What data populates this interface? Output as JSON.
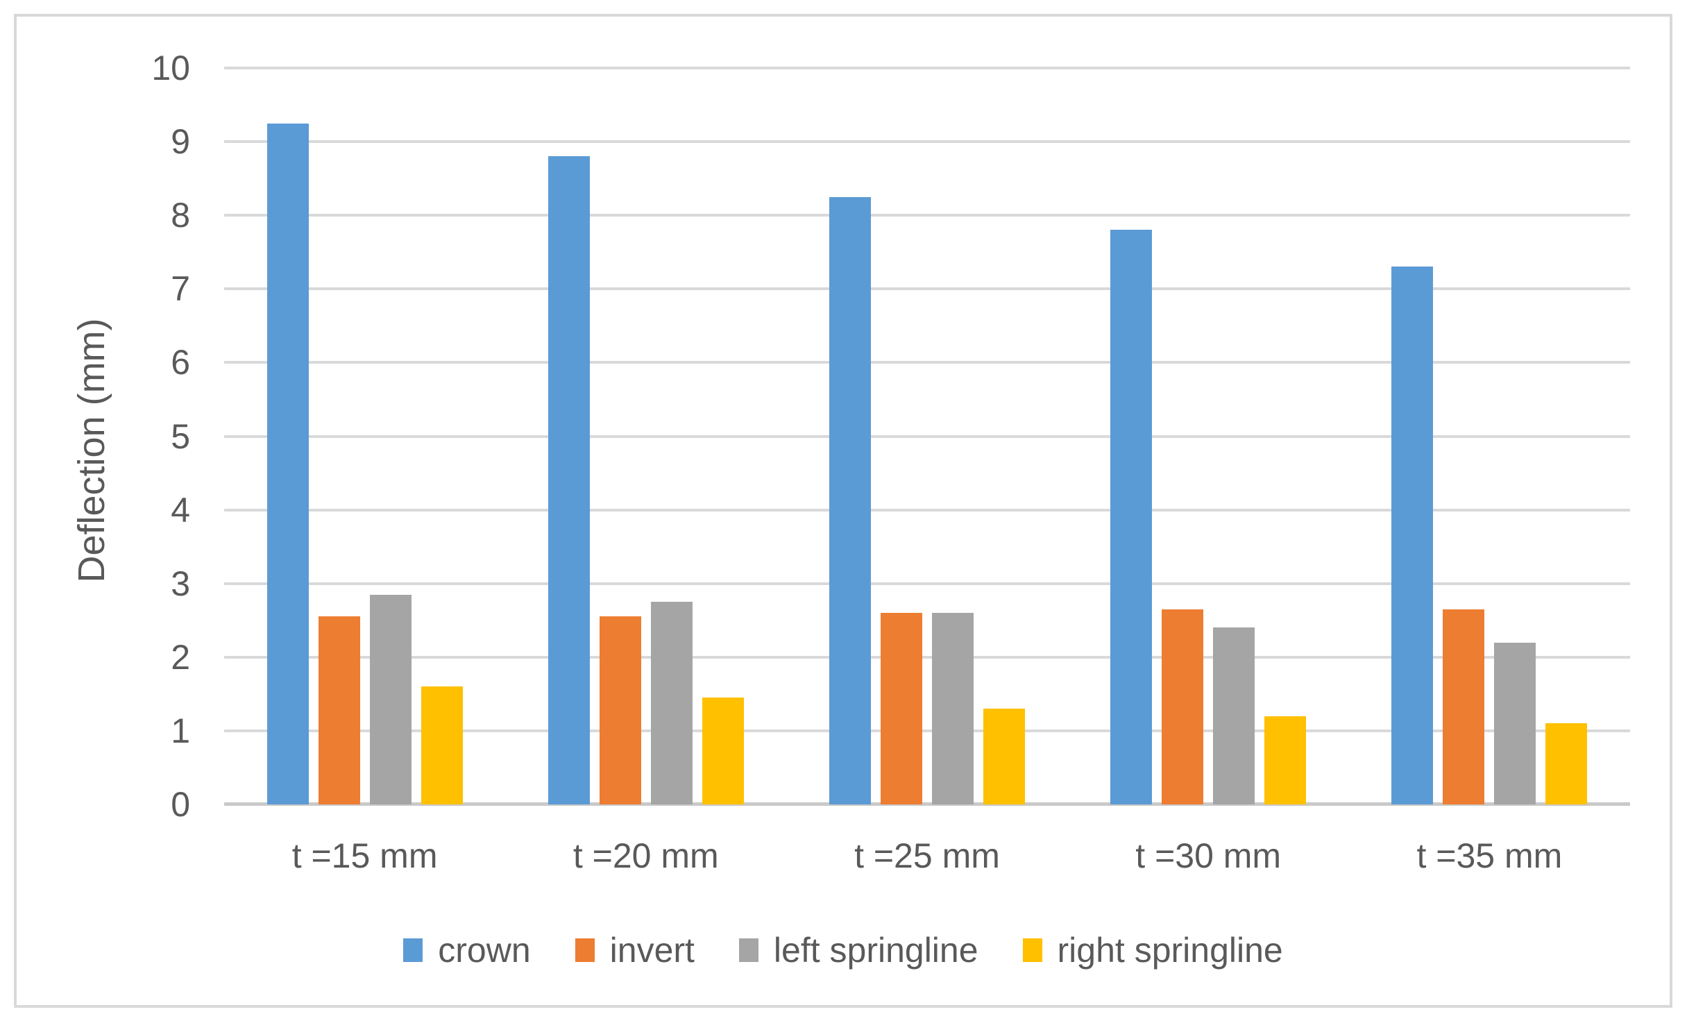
{
  "chart_data": {
    "type": "bar",
    "title": "",
    "xlabel": "",
    "ylabel": "Deflection (mm)",
    "ylim": [
      0,
      10
    ],
    "y_ticks": [
      0,
      1,
      2,
      3,
      4,
      5,
      6,
      7,
      8,
      9,
      10
    ],
    "grid": true,
    "legend_position": "bottom",
    "categories": [
      "t =15 mm",
      "t =20 mm",
      "t =25 mm",
      "t =30 mm",
      "t =35 mm"
    ],
    "series": [
      {
        "name": "crown",
        "color": "#5B9BD5",
        "values": [
          9.25,
          8.8,
          8.25,
          7.8,
          7.3
        ]
      },
      {
        "name": "invert",
        "color": "#ED7D31",
        "values": [
          2.55,
          2.55,
          2.6,
          2.65,
          2.65
        ]
      },
      {
        "name": "left springline",
        "color": "#A5A5A5",
        "values": [
          2.85,
          2.75,
          2.6,
          2.4,
          2.2
        ]
      },
      {
        "name": "right springline",
        "color": "#FFC000",
        "values": [
          1.6,
          1.45,
          1.3,
          1.2,
          1.1
        ]
      }
    ]
  },
  "colors": {
    "gridline": "#D9D9D9",
    "axis_line": "#C9C9C9",
    "text": "#595959",
    "frame_border": "#D9D9D9",
    "background": "#FFFFFF"
  }
}
